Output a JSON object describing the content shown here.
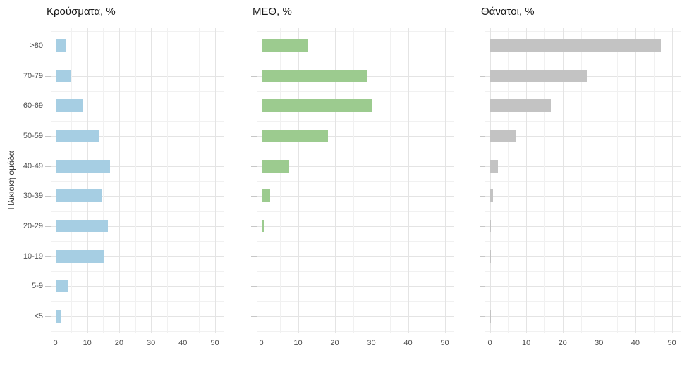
{
  "figure": {
    "y_axis_title": "Ηλικιακή ομάδα",
    "background": "#ffffff"
  },
  "chart_data": {
    "type": "bar",
    "orientation": "horizontal",
    "categories": [
      ">80",
      "70-79",
      "60-69",
      "50-59",
      "40-49",
      "30-39",
      "20-29",
      "10-19",
      "5-9",
      "<5"
    ],
    "ylabel": "Ηλικιακή ομάδα",
    "xlabel": "",
    "x_axis": {
      "min": 0,
      "max": 50,
      "ticks": [
        0,
        10,
        20,
        30,
        40,
        50
      ],
      "minor_ticks": [
        5,
        15,
        25,
        35,
        45
      ]
    },
    "grid": true,
    "legend": false,
    "series": [
      {
        "name": "Κρούσματα, %",
        "color": "#A6CEE3",
        "values": [
          3.5,
          4.8,
          8.5,
          13.6,
          17.1,
          14.8,
          16.4,
          15.2,
          3.9,
          1.7
        ]
      },
      {
        "name": "ΜΕΘ, %",
        "color": "#9CCB8F",
        "values": [
          12.5,
          28.7,
          30.1,
          18.1,
          7.5,
          2.4,
          0.8,
          0.3,
          0.2,
          0.3
        ]
      },
      {
        "name": "Θάνατοι, %",
        "color": "#C3C3C3",
        "values": [
          47,
          26.6,
          16.7,
          7.3,
          2.3,
          0.8,
          0.2,
          0.1,
          0,
          0.1
        ]
      }
    ],
    "colors": {
      "grid_major": "#e4e4e4",
      "grid_minor": "#f1f1f1",
      "axis_text": "#4d4d4d",
      "title_text": "#1a1a1a",
      "tick_mark": "#c7c7c7"
    }
  }
}
